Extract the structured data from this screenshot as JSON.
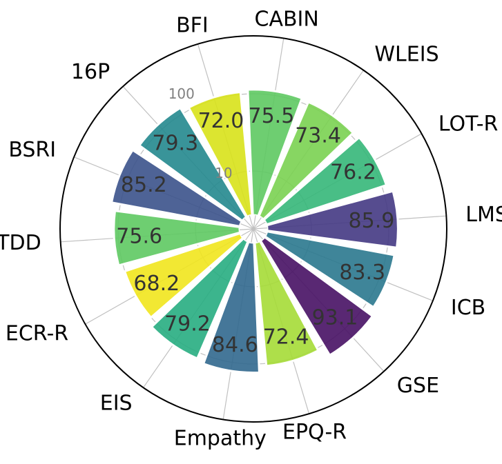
{
  "chart_data": {
    "type": "polar-bar",
    "title": "",
    "radial_scale": "log",
    "r_ticks": [
      10,
      100
    ],
    "r_range": [
      3,
      300
    ],
    "categories": [
      "CABIN",
      "WLEIS",
      "LOT-R",
      "LMS",
      "ICB",
      "GSE",
      "EPQ-R",
      "Empathy",
      "EIS",
      "ECR-R",
      "DTDD",
      "BSRI",
      "16P",
      "BFI"
    ],
    "values": [
      75.5,
      73.4,
      76.2,
      85.9,
      83.3,
      93.1,
      72.4,
      84.6,
      79.2,
      68.2,
      75.6,
      85.2,
      79.3,
      72.0
    ],
    "value_labels": [
      "75.5",
      "73.4",
      "76.2",
      "85.9",
      "83.3",
      "93.1",
      "72.4",
      "84.6",
      "79.2",
      "68.2",
      "75.6",
      "85.2",
      "79.3",
      "72.0"
    ],
    "colors": [
      "#5ec962",
      "#7ad151",
      "#35b779",
      "#443983",
      "#2a788e",
      "#471164",
      "#a5db36",
      "#31688e",
      "#27ad81",
      "#f1e51d",
      "#5ec962",
      "#3b528b",
      "#23888e",
      "#d8e219"
    ]
  }
}
